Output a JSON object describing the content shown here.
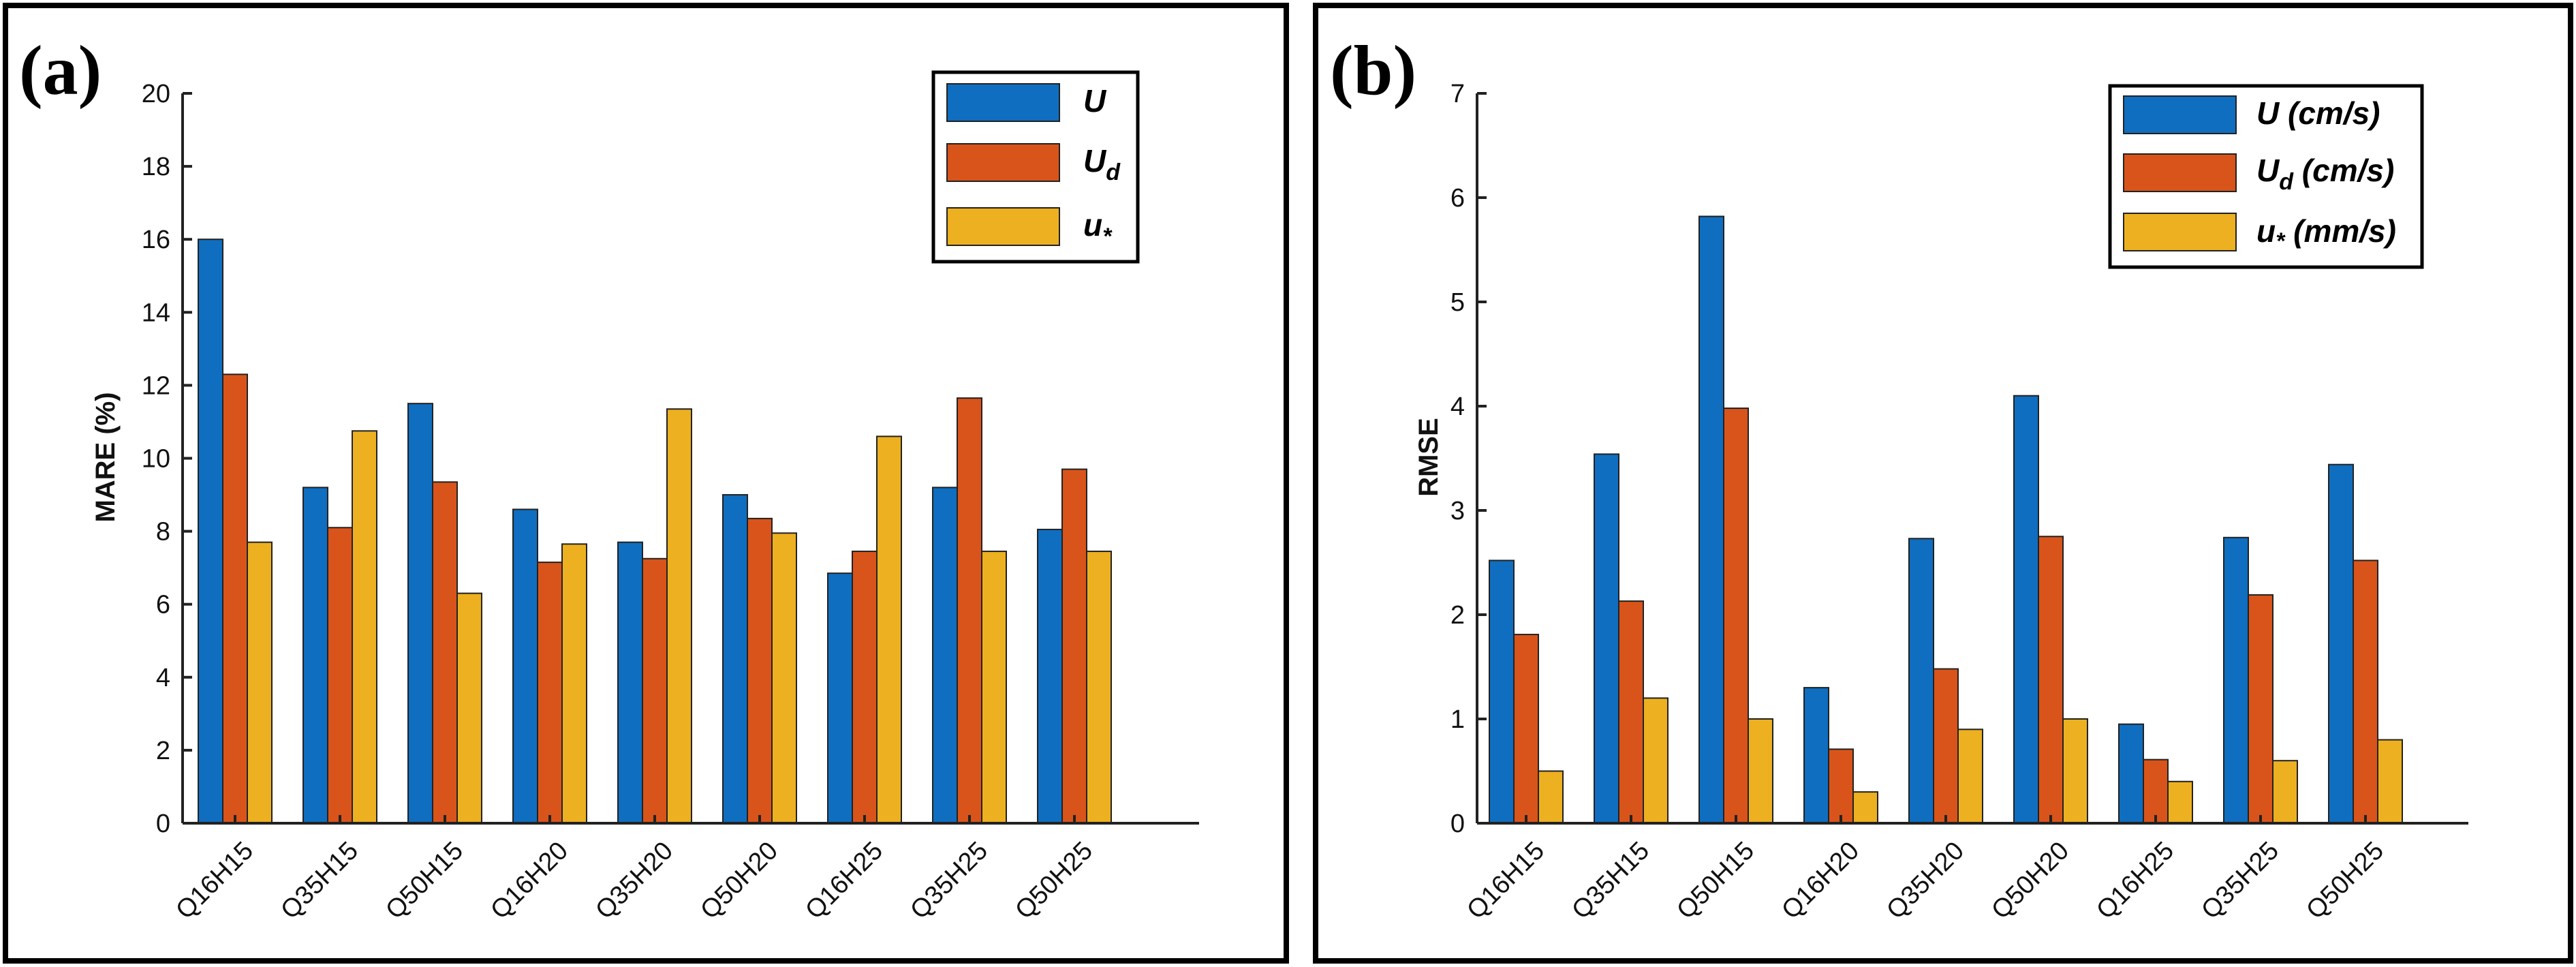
{
  "chart_data": [
    {
      "type": "bar",
      "panel_label": "(a)",
      "title": "",
      "xlabel": "",
      "ylabel": "MARE (%)",
      "categories": [
        "Q16H15",
        "Q35H15",
        "Q50H15",
        "Q16H20",
        "Q35H20",
        "Q50H20",
        "Q16H25",
        "Q35H25",
        "Q50H25"
      ],
      "ylim": [
        0,
        20
      ],
      "yticks": [
        "0",
        "2",
        "4",
        "6",
        "8",
        "10",
        "12",
        "14",
        "16",
        "18",
        "20"
      ],
      "legend_position": "top-right",
      "series": [
        {
          "name": "U",
          "label_main": "U",
          "label_sub": "",
          "label_tail": "",
          "color": "#0F6EBF",
          "values": [
            16.0,
            9.2,
            11.5,
            8.6,
            7.7,
            9.0,
            6.85,
            9.2,
            8.05
          ]
        },
        {
          "name": "U_d",
          "label_main": "U",
          "label_sub": "d",
          "label_tail": "",
          "color": "#D9541A",
          "values": [
            12.3,
            8.1,
            9.35,
            7.15,
            7.25,
            8.35,
            7.45,
            11.65,
            9.7
          ]
        },
        {
          "name": "u_*",
          "label_main": "u",
          "label_sub": "*",
          "label_tail": "",
          "color": "#EDB020",
          "values": [
            7.7,
            10.75,
            6.3,
            7.65,
            11.35,
            7.95,
            10.6,
            7.45,
            7.45
          ]
        }
      ]
    },
    {
      "type": "bar",
      "panel_label": "(b)",
      "title": "",
      "xlabel": "",
      "ylabel": "RMSE",
      "categories": [
        "Q16H15",
        "Q35H15",
        "Q50H15",
        "Q16H20",
        "Q35H20",
        "Q50H20",
        "Q16H25",
        "Q35H25",
        "Q50H25"
      ],
      "ylim": [
        0,
        7
      ],
      "yticks": [
        "0",
        "1",
        "2",
        "3",
        "4",
        "5",
        "6",
        "7"
      ],
      "legend_position": "top-right",
      "series": [
        {
          "name": "U (cm/s)",
          "label_main": "U",
          "label_sub": "",
          "label_tail": " (cm/s)",
          "color": "#0F6EBF",
          "values": [
            2.52,
            3.54,
            5.82,
            1.3,
            2.73,
            4.1,
            0.95,
            2.74,
            3.44
          ]
        },
        {
          "name": "U_d (cm/s)",
          "label_main": "U",
          "label_sub": "d",
          "label_tail": " (cm/s)",
          "color": "#D9541A",
          "values": [
            1.81,
            2.13,
            3.98,
            0.71,
            1.48,
            2.75,
            0.61,
            2.19,
            2.52
          ]
        },
        {
          "name": "u_* (mm/s)",
          "label_main": "u",
          "label_sub": "*",
          "label_tail": " (mm/s)",
          "color": "#EDB020",
          "values": [
            0.5,
            1.2,
            1.0,
            0.3,
            0.9,
            1.0,
            0.4,
            0.6,
            0.8
          ]
        }
      ]
    }
  ]
}
